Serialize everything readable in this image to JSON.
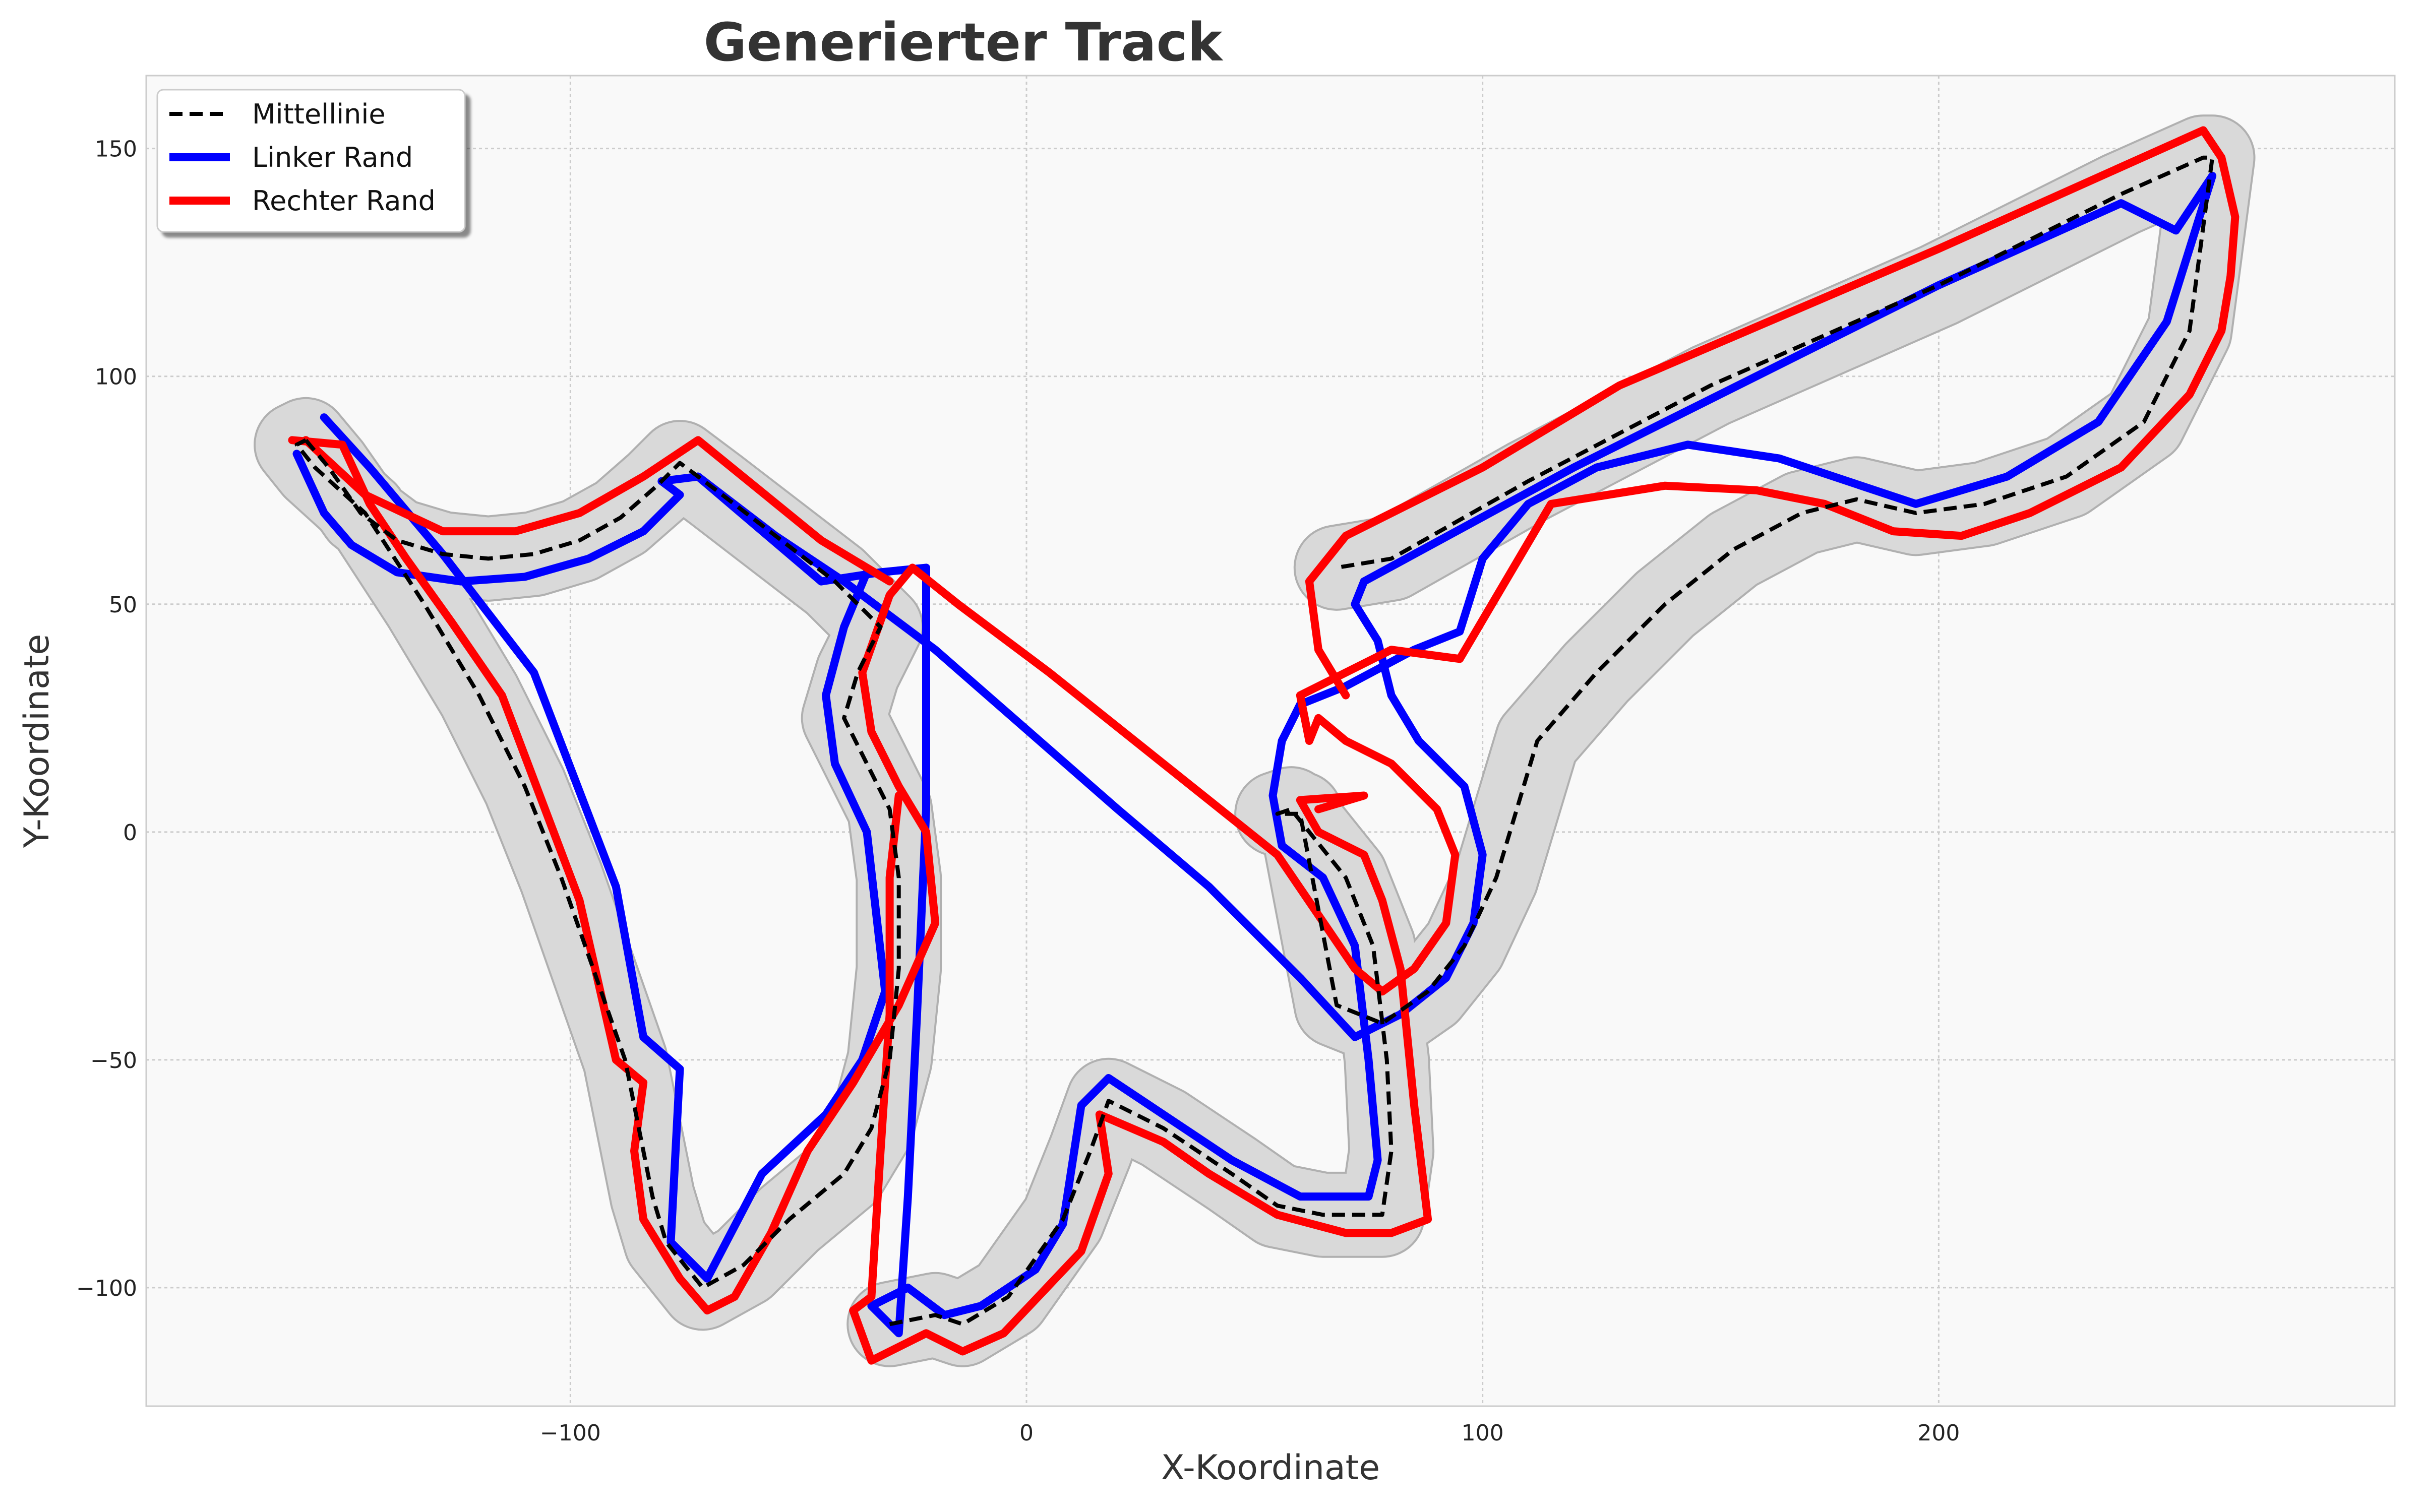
{
  "chart_data": {
    "type": "line",
    "title": "Generierter Track",
    "xlabel": "X-Koordinate",
    "ylabel": "Y-Koordinate",
    "xlim": [
      -193,
      300
    ],
    "ylim": [
      -126,
      166
    ],
    "xticks": [
      -100,
      0,
      100,
      200
    ],
    "yticks": [
      -100,
      -50,
      0,
      50,
      100,
      150
    ],
    "xtick_labels": [
      "−100",
      "0",
      "100",
      "200"
    ],
    "ytick_labels": [
      "−100",
      "−50",
      "0",
      "50",
      "100",
      "150"
    ],
    "grid": true,
    "legend_position": "top-left",
    "colors": {
      "centerline": "#000000",
      "left": "#0000ff",
      "right": "#ff0000",
      "band": "#d9d9d9",
      "band_stroke": "#b0b0b0",
      "plot_bg": "#f9f9f9"
    },
    "series": [
      {
        "name": "Mittellinie",
        "style": "dashed",
        "x": [
          -158,
          -153,
          -146,
          -138,
          -128,
          -118,
          -108,
          -98,
          -89,
          -81,
          -76,
          -68,
          -55,
          -42,
          -32,
          -37,
          -40,
          -35,
          -30,
          -28,
          -28,
          -30,
          -34,
          -40,
          -52,
          -62,
          -71,
          -79,
          -82,
          -84,
          -88,
          -95,
          -102,
          -110,
          -120,
          -132,
          -145,
          -156,
          -160,
          -158
        ],
        "y": [
          86,
          80,
          70,
          64,
          61,
          60,
          61,
          64,
          69,
          76,
          81,
          75,
          65,
          55,
          45,
          35,
          25,
          15,
          5,
          -10,
          -30,
          -50,
          -65,
          -75,
          -85,
          -95,
          -100,
          -90,
          -80,
          -70,
          -50,
          -30,
          -10,
          10,
          30,
          50,
          70,
          80,
          85,
          86
        ],
        "x2": [
          -30,
          -20,
          -14,
          -4,
          8,
          14,
          18,
          30,
          45,
          55,
          65,
          78,
          80,
          79,
          76,
          70,
          62,
          58,
          55,
          60,
          68,
          78,
          88,
          96,
          103,
          112,
          125,
          140,
          155,
          170,
          182,
          195,
          210,
          228,
          245,
          255,
          260,
          258,
          240,
          200,
          150,
          110,
          80,
          68
        ],
        "y2": [
          -108,
          -106,
          -108,
          -102,
          -85,
          -70,
          -59,
          -65,
          -75,
          -82,
          -84,
          -84,
          -70,
          -50,
          -25,
          -10,
          0,
          5,
          4,
          4,
          -38,
          -42,
          -35,
          -25,
          -10,
          20,
          35,
          50,
          62,
          70,
          73,
          70,
          72,
          78,
          90,
          110,
          148,
          148,
          140,
          120,
          98,
          77,
          60,
          58
        ]
      },
      {
        "name": "Linker Rand",
        "style": "solid"
      },
      {
        "name": "Rechter Rand",
        "style": "solid"
      }
    ],
    "left_edge": [
      [
        [
          -160,
          83
        ],
        [
          -154,
          70
        ],
        [
          -148,
          63
        ],
        [
          -138,
          57
        ],
        [
          -124,
          55
        ],
        [
          -110,
          56
        ],
        [
          -96,
          60
        ],
        [
          -84,
          66
        ],
        [
          -76,
          74
        ],
        [
          -80,
          77
        ],
        [
          -72,
          78
        ],
        [
          -45,
          55
        ],
        [
          -32,
          57
        ],
        [
          -22,
          58
        ],
        [
          -22,
          5
        ]
      ],
      [
        [
          -22,
          5
        ],
        [
          -24,
          -40
        ],
        [
          -26,
          -80
        ],
        [
          -28,
          -110
        ],
        [
          -34,
          -104
        ],
        [
          -26,
          -100
        ],
        [
          -18,
          -106
        ],
        [
          -10,
          -104
        ],
        [
          2,
          -96
        ],
        [
          8,
          -86
        ],
        [
          12,
          -60
        ],
        [
          18,
          -54
        ],
        [
          30,
          -62
        ],
        [
          45,
          -72
        ],
        [
          60,
          -80
        ],
        [
          75,
          -80
        ],
        [
          77,
          -72
        ],
        [
          75,
          -50
        ],
        [
          72,
          -25
        ],
        [
          65,
          -10
        ],
        [
          56,
          -3
        ],
        [
          54,
          8
        ],
        [
          56,
          20
        ],
        [
          60,
          28
        ],
        [
          70,
          32
        ],
        [
          85,
          40
        ],
        [
          95,
          44
        ],
        [
          100,
          60
        ],
        [
          110,
          72
        ],
        [
          125,
          80
        ],
        [
          145,
          85
        ],
        [
          165,
          82
        ],
        [
          180,
          77
        ],
        [
          195,
          72
        ],
        [
          215,
          78
        ],
        [
          235,
          90
        ],
        [
          250,
          112
        ],
        [
          260,
          144
        ],
        [
          252,
          132
        ],
        [
          240,
          138
        ],
        [
          200,
          120
        ],
        [
          160,
          100
        ],
        [
          120,
          80
        ],
        [
          74,
          55
        ]
      ],
      [
        [
          -154,
          91
        ],
        [
          -144,
          80
        ],
        [
          -128,
          61
        ],
        [
          -108,
          35
        ],
        [
          -90,
          -12
        ],
        [
          -84,
          -45
        ],
        [
          -76,
          -52
        ],
        [
          -78,
          -90
        ],
        [
          -70,
          -98
        ],
        [
          -58,
          -75
        ],
        [
          -44,
          -62
        ],
        [
          -36,
          -50
        ],
        [
          -31,
          -35
        ],
        [
          -35,
          0
        ],
        [
          -42,
          15
        ],
        [
          -44,
          30
        ],
        [
          -40,
          45
        ],
        [
          -35,
          57
        ]
      ],
      [
        [
          74,
          55
        ],
        [
          72,
          50
        ],
        [
          77,
          42
        ],
        [
          80,
          30
        ],
        [
          86,
          20
        ],
        [
          96,
          10
        ],
        [
          100,
          -5
        ],
        [
          98,
          -20
        ],
        [
          92,
          -32
        ],
        [
          82,
          -40
        ],
        [
          72,
          -45
        ],
        [
          60,
          -32
        ],
        [
          40,
          -12
        ],
        [
          20,
          5
        ],
        [
          -20,
          40
        ],
        [
          -40,
          55
        ],
        [
          -55,
          65
        ],
        [
          -72,
          78
        ]
      ]
    ],
    "right_edge": [
      [
        [
          -161,
          86
        ],
        [
          -150,
          85
        ],
        [
          -144,
          72
        ],
        [
          -136,
          60
        ],
        [
          -126,
          46
        ],
        [
          -115,
          30
        ],
        [
          -98,
          -15
        ],
        [
          -90,
          -50
        ],
        [
          -84,
          -55
        ],
        [
          -86,
          -70
        ],
        [
          -84,
          -85
        ],
        [
          -76,
          -98
        ],
        [
          -70,
          -105
        ],
        [
          -64,
          -102
        ],
        [
          -56,
          -88
        ],
        [
          -48,
          -70
        ],
        [
          -38,
          -55
        ],
        [
          -28,
          -38
        ],
        [
          -20,
          -20
        ],
        [
          -22,
          0
        ],
        [
          -28,
          10
        ],
        [
          -34,
          22
        ],
        [
          -36,
          35
        ],
        [
          -30,
          52
        ],
        [
          -25,
          58
        ],
        [
          -15,
          50
        ],
        [
          5,
          35
        ],
        [
          30,
          15
        ],
        [
          55,
          -5
        ],
        [
          72,
          -30
        ],
        [
          78,
          -35
        ],
        [
          85,
          -30
        ],
        [
          92,
          -20
        ],
        [
          94,
          -5
        ],
        [
          90,
          5
        ],
        [
          80,
          15
        ],
        [
          70,
          20
        ],
        [
          64,
          25
        ],
        [
          62,
          20
        ],
        [
          60,
          30
        ],
        [
          80,
          40
        ],
        [
          95,
          38
        ],
        [
          105,
          55
        ],
        [
          115,
          72
        ],
        [
          140,
          76
        ],
        [
          160,
          75
        ],
        [
          175,
          72
        ],
        [
          190,
          66
        ],
        [
          205,
          65
        ],
        [
          220,
          70
        ],
        [
          240,
          80
        ],
        [
          255,
          96
        ],
        [
          262,
          110
        ],
        [
          264,
          122
        ],
        [
          265,
          135
        ],
        [
          262,
          148
        ],
        [
          258,
          154
        ],
        [
          200,
          128
        ],
        [
          130,
          98
        ],
        [
          100,
          80
        ],
        [
          70,
          65
        ],
        [
          62,
          55
        ],
        [
          64,
          40
        ],
        [
          70,
          30
        ]
      ],
      [
        [
          64,
          5
        ],
        [
          74,
          8
        ],
        [
          60,
          7
        ],
        [
          64,
          0
        ],
        [
          74,
          -5
        ],
        [
          78,
          -15
        ],
        [
          82,
          -30
        ],
        [
          85,
          -60
        ],
        [
          88,
          -85
        ],
        [
          80,
          -88
        ],
        [
          70,
          -88
        ],
        [
          55,
          -84
        ],
        [
          40,
          -75
        ],
        [
          30,
          -68
        ],
        [
          16,
          -62
        ],
        [
          18,
          -75
        ],
        [
          12,
          -92
        ],
        [
          -5,
          -110
        ],
        [
          -14,
          -114
        ],
        [
          -22,
          -110
        ],
        [
          -34,
          -116
        ],
        [
          -38,
          -105
        ],
        [
          -34,
          -102
        ],
        [
          -32,
          -70
        ],
        [
          -30,
          -40
        ],
        [
          -30,
          -10
        ],
        [
          -28,
          8
        ]
      ],
      [
        [
          -158,
          86
        ],
        [
          -145,
          74
        ],
        [
          -128,
          66
        ],
        [
          -112,
          66
        ],
        [
          -98,
          70
        ],
        [
          -84,
          78
        ],
        [
          -72,
          86
        ],
        [
          -45,
          64
        ],
        [
          -30,
          55
        ]
      ]
    ],
    "band_width_units": 9
  },
  "legend": {
    "items": [
      "Mittellinie",
      "Linker Rand",
      "Rechter Rand"
    ]
  }
}
